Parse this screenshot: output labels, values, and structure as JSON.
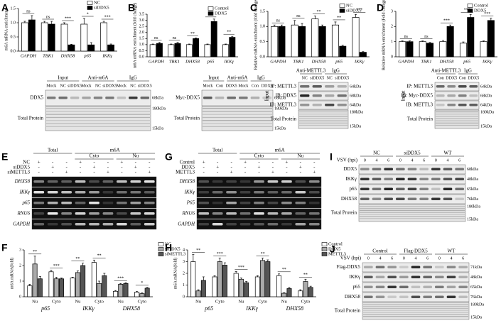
{
  "panel_letters": [
    "A",
    "B",
    "C",
    "D",
    "E",
    "F",
    "G",
    "H",
    "I",
    "J"
  ],
  "chart_data": [
    {
      "type": "bar",
      "ylabel": "m6A mRNA enrichment",
      "categories": [
        "GAPDH",
        "TBK1",
        "DHX58",
        "p65",
        "IKKγ"
      ],
      "series": [
        {
          "name": "NC",
          "color": "#ffffff",
          "values": [
            1.0,
            1.0,
            0.95,
            0.95,
            1.0
          ],
          "errors": [
            0.05,
            0.05,
            0.05,
            0.2,
            0.05
          ]
        },
        {
          "name": "siDDX5",
          "color": "#000000",
          "values": [
            1.1,
            0.95,
            0.22,
            0.22,
            0.22
          ],
          "errors": [
            0.15,
            0.1,
            0.02,
            0.08,
            0.03
          ]
        }
      ],
      "annotations": [
        "ns",
        "ns",
        "***",
        "*",
        "***"
      ],
      "ylim": [
        0,
        1.5
      ],
      "yticks": [
        {
          "value": 0,
          "label": "0.0"
        },
        0.5,
        {
          "value": 1,
          "label": "1.0"
        },
        1.5
      ]
    },
    {
      "type": "bar",
      "ylabel": "m6A mRNA enrichment (fold change)",
      "categories": [
        "GAPDH",
        "TBK1",
        "DHX58",
        "p65",
        "IKKγ"
      ],
      "series": [
        {
          "name": "Control",
          "color": "#ffffff",
          "values": [
            1.0,
            1.0,
            1.0,
            1.0,
            1.0
          ],
          "errors": [
            0.05,
            0.05,
            0.05,
            0.05,
            0.05
          ]
        },
        {
          "name": "DDX5",
          "color": "#000000",
          "values": [
            1.1,
            1.1,
            1.5,
            2.9,
            1.6
          ],
          "errors": [
            0.08,
            0.08,
            0.05,
            0.2,
            0.08
          ]
        }
      ],
      "annotations": [
        "ns",
        "ns",
        "**",
        "**",
        "**"
      ],
      "ylim": [
        0,
        3.5
      ],
      "yticks": [
        {
          "value": 0,
          "label": "0.0"
        },
        0.5,
        {
          "value": 1,
          "label": "1.0"
        },
        1.5,
        {
          "value": 2,
          "label": "2.0"
        },
        2.5,
        {
          "value": 3,
          "label": "3.0"
        },
        3.5
      ]
    },
    {
      "type": "bar",
      "ylabel": "Relative mRNA enrichment (fold change)",
      "categories": [
        "GAPDH",
        "TBK1",
        "DHX58",
        "p65",
        "IKKγ"
      ],
      "series": [
        {
          "name": "NC",
          "color": "#ffffff",
          "values": [
            1.0,
            1.05,
            1.25,
            1.05,
            1.3
          ],
          "errors": [
            0.05,
            0.15,
            0.1,
            0.1,
            0.1
          ]
        },
        {
          "name": "siDDX5",
          "color": "#000000",
          "values": [
            1.0,
            1.0,
            1.0,
            0.35,
            0.15
          ],
          "errors": [
            0.05,
            0.1,
            0.05,
            0.03,
            0.02
          ]
        }
      ],
      "annotations": [
        "ns",
        "ns",
        "**",
        "**",
        "***"
      ],
      "ylim": [
        0,
        1.5
      ],
      "yticks": [
        {
          "value": 0,
          "label": "0.0"
        },
        0.5,
        {
          "value": 1,
          "label": "1.0"
        },
        1.5
      ]
    },
    {
      "type": "bar",
      "ylabel": "Relative mRNA enrichment (Fold change)",
      "categories": [
        "GAPDH",
        "TBK1",
        "DHX58",
        "p65",
        "IKKγ"
      ],
      "series": [
        {
          "name": "Control",
          "color": "#ffffff",
          "values": [
            1.0,
            1.0,
            1.0,
            0.9,
            1.0
          ],
          "errors": [
            0.05,
            0.05,
            0.08,
            0.08,
            0.05
          ]
        },
        {
          "name": "DDX5",
          "color": "#000000",
          "values": [
            1.0,
            0.9,
            2.0,
            2.6,
            2.4
          ],
          "errors": [
            0.05,
            0.05,
            0.1,
            0.2,
            0.15
          ]
        }
      ],
      "annotations": [
        "ns",
        "ns",
        "***",
        "***",
        "***"
      ],
      "ylim": [
        0,
        3
      ],
      "yticks": [
        0,
        1,
        2,
        3
      ]
    },
    {
      "type": "bar",
      "ylabel": "m6A mRNA(fold)",
      "categories": [
        "Nu",
        "Cyto",
        "Nu",
        "Cyto",
        "Nu",
        "Cyto"
      ],
      "groups": [
        "p65",
        "IKKγ",
        "DHX58"
      ],
      "series": [
        {
          "name": "NC",
          "color": "#ffffff",
          "values": [
            0.7,
            1.6,
            1.2,
            2.2,
            0.35,
            0.3
          ],
          "errors": [
            0.1,
            0.1,
            0.05,
            0.15,
            0.05,
            0.05
          ]
        },
        {
          "name": "siDDX5",
          "color": "#aaaaaa",
          "values": [
            2.1,
            1.15,
            1.55,
            0.85,
            0.8,
            0.2
          ],
          "errors": [
            0.5,
            0.1,
            0.1,
            0.15,
            0.05,
            0.05
          ]
        },
        {
          "name": "siMETTL3",
          "color": "#555555",
          "values": [
            1.15,
            1.15,
            2.0,
            1.35,
            0.85,
            0.55
          ],
          "errors": [
            0.15,
            0.05,
            0.15,
            0.15,
            0.05,
            0.05
          ]
        }
      ],
      "annotations": [
        "**",
        "***",
        "**",
        "**",
        "***",
        "*"
      ],
      "ylim": [
        0,
        3
      ],
      "yticks": [
        0,
        1,
        2,
        3
      ]
    },
    {
      "type": "bar",
      "ylabel": "m6A mRNA(fold)",
      "categories": [
        "Nu",
        "Cyto",
        "Nu",
        "Cyto",
        "Nu",
        "Cyto"
      ],
      "groups": [
        "p65",
        "IKKγ",
        "DHX58"
      ],
      "series": [
        {
          "name": "Control",
          "color": "#ffffff",
          "values": [
            3.0,
            1.7,
            2.0,
            1.7,
            1.8,
            0.5
          ],
          "errors": [
            0.6,
            0.1,
            0.15,
            0.1,
            0.15,
            0.1
          ]
        },
        {
          "name": "DDX5",
          "color": "#aaaaaa",
          "values": [
            0.5,
            3.0,
            1.5,
            3.1,
            0.3,
            1.3
          ],
          "errors": [
            0.1,
            0.3,
            0.1,
            0.2,
            0.05,
            0.2
          ]
        },
        {
          "name": "METTL3",
          "color": "#555555",
          "values": [
            1.4,
            2.7,
            1.2,
            3.0,
            0.7,
            0.8
          ],
          "errors": [
            0.3,
            0.2,
            0.1,
            0.15,
            0.1,
            0.1
          ]
        }
      ],
      "annotations": [
        "**",
        "***",
        "***",
        "**",
        "**",
        "**"
      ],
      "ylim": [
        0,
        4
      ],
      "yticks": [
        0,
        1,
        2,
        3,
        4
      ]
    }
  ],
  "gels": {
    "A": {
      "headers": [
        "Input",
        "Anti-m6A",
        "IgG"
      ],
      "lanes": [
        "Mock",
        "NC",
        "siDDX5",
        "Mock",
        "NC",
        "siDDX5",
        "Mock",
        "NC",
        "siDDX5"
      ],
      "rows": [
        "DDX5",
        "Total Protein"
      ],
      "markers": [
        "68kDa",
        "180kDa",
        "15kDa"
      ]
    },
    "B": {
      "headers": [
        "Input",
        "Anti-m6A",
        "IgG"
      ],
      "lanes": [
        "Mock",
        "Con",
        "DDX5",
        "Mock",
        "Con",
        "DDX5"
      ],
      "rows": [
        "Myc-DDX5",
        "Total Protein"
      ],
      "markers": [
        "68kDa",
        "180kDa",
        "15kDa"
      ]
    },
    "C": {
      "headers": [
        "Anti-METTL3",
        "IgG"
      ],
      "lanes": [
        "NC",
        "siDDX5",
        "NC",
        "siDDX5"
      ],
      "rows": [
        "IP: METTL3",
        "IB: DDX5",
        "IB: METTL3",
        "Total Protein"
      ],
      "side": "Input",
      "markers": [
        "64kDa",
        "68kDa",
        "64kDa",
        "180kDa",
        "15kDa"
      ]
    },
    "D": {
      "headers": [
        "Anti-METTL3",
        "IgG"
      ],
      "lanes": [
        "Con",
        "DDX5",
        "Con",
        "DDX5"
      ],
      "rows": [
        "IP: METTL3",
        "IB: Myc-DDX5",
        "IB: METTL3",
        "Total Protein"
      ],
      "side": "Input",
      "markers": [
        "64kDa",
        "68kDa",
        "64kDa",
        "180kDa",
        "15kDa"
      ]
    },
    "E": {
      "headers": [
        "Total",
        "m6A",
        "Cyto",
        "Nu"
      ],
      "conditions": [
        "NC",
        "siDDX5",
        "siMETTL3"
      ],
      "signs": [
        [
          "+",
          "-",
          "-",
          "+",
          "-",
          "-",
          "+",
          "-",
          "-"
        ],
        [
          "-",
          "+",
          "-",
          "-",
          "+",
          "-",
          "-",
          "+",
          "-"
        ],
        [
          "-",
          "-",
          "+",
          "-",
          "-",
          "+",
          "-",
          "-",
          "+"
        ]
      ],
      "rows": [
        "DHX58",
        "IKKγ",
        "p65",
        "RNU6",
        "GAPDH"
      ]
    },
    "G": {
      "headers": [
        "Total",
        "m6A",
        "Cyto",
        "Nu"
      ],
      "conditions": [
        "Control",
        "DDX5",
        "METTL3"
      ],
      "signs": [
        [
          "+",
          "-",
          "-",
          "+",
          "-",
          "-",
          "+",
          "-",
          "-"
        ],
        [
          "-",
          "+",
          "-",
          "-",
          "+",
          "-",
          "-",
          "+",
          "-"
        ],
        [
          "-",
          "-",
          "+",
          "-",
          "-",
          "+",
          "-",
          "-",
          "+"
        ]
      ],
      "rows": [
        "DHX58",
        "IKKγ",
        "P65",
        "RNU6",
        "GAPDH"
      ]
    },
    "I": {
      "headers": [
        "NC",
        "siDDX5",
        "WT"
      ],
      "xlabel": "VSV (hpi)",
      "lanes": [
        "0",
        "4",
        "6",
        "0",
        "4",
        "6",
        "0",
        "4",
        "6"
      ],
      "rows": [
        "DDX5",
        "IKKγ",
        "p65",
        "DHX58",
        "Total Protein"
      ],
      "markers": [
        "68kDa",
        "48kDa",
        "65kDa",
        "76kDa",
        "180kDa",
        "15kDa"
      ]
    },
    "J": {
      "headers": [
        "Control",
        "Flag-DDX5",
        "WT"
      ],
      "xlabel": "VSV (hpi)",
      "lanes": [
        "0",
        "4",
        "6",
        "0",
        "4",
        "6",
        "0",
        "4",
        "6"
      ],
      "rows": [
        "Flag-DDX5",
        "IKKγ",
        "p65",
        "DHX58",
        "Total Protein"
      ],
      "markers": [
        "71kDa",
        "48kDa",
        "65kDa",
        "76kDa",
        "180kDa",
        "15kDa"
      ]
    }
  }
}
